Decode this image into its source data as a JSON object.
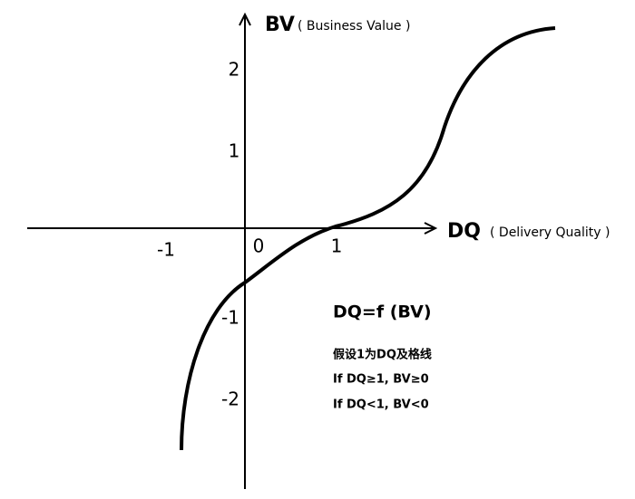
{
  "axes": {
    "y_title": "BV",
    "y_subtitle": "( Business Value )",
    "x_title": "DQ",
    "x_subtitle": "( Delivery Quality )",
    "x_ticks": [
      "-1",
      "0",
      "1"
    ],
    "y_ticks": [
      "2",
      "1",
      "-1",
      "-2"
    ]
  },
  "formula": "DQ=f (BV)",
  "notes": [
    "假设1为DQ及格线",
    "If DQ≥1, BV≥0",
    "If DQ<1, BV<0"
  ]
}
